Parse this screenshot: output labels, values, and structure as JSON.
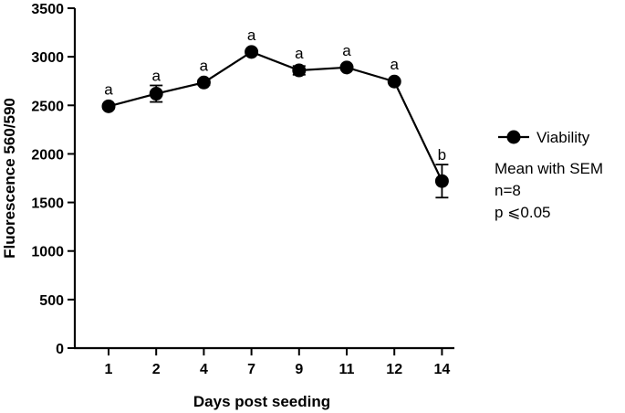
{
  "chart_data": {
    "type": "line",
    "categories": [
      "1",
      "2",
      "4",
      "7",
      "9",
      "11",
      "12",
      "14"
    ],
    "series": [
      {
        "name": "Viability",
        "values": [
          2490,
          2620,
          2735,
          3050,
          2860,
          2890,
          2745,
          1720
        ],
        "sem": [
          20,
          85,
          25,
          15,
          45,
          15,
          15,
          170
        ],
        "significance": [
          "a",
          "a",
          "a",
          "a",
          "a",
          "a",
          "a",
          "b"
        ]
      }
    ],
    "title": "",
    "xlabel": "Days post seeding",
    "ylabel": "Fluorescence 560/590",
    "ylim": [
      0,
      3500
    ],
    "yticks": [
      0,
      500,
      1000,
      1500,
      2000,
      2500,
      3000,
      3500
    ],
    "grid": false,
    "legend": {
      "position": "right",
      "entries": [
        "Viability"
      ]
    },
    "annotations": [
      "Mean with SEM",
      "n=8",
      "p ⩽0.05"
    ]
  }
}
